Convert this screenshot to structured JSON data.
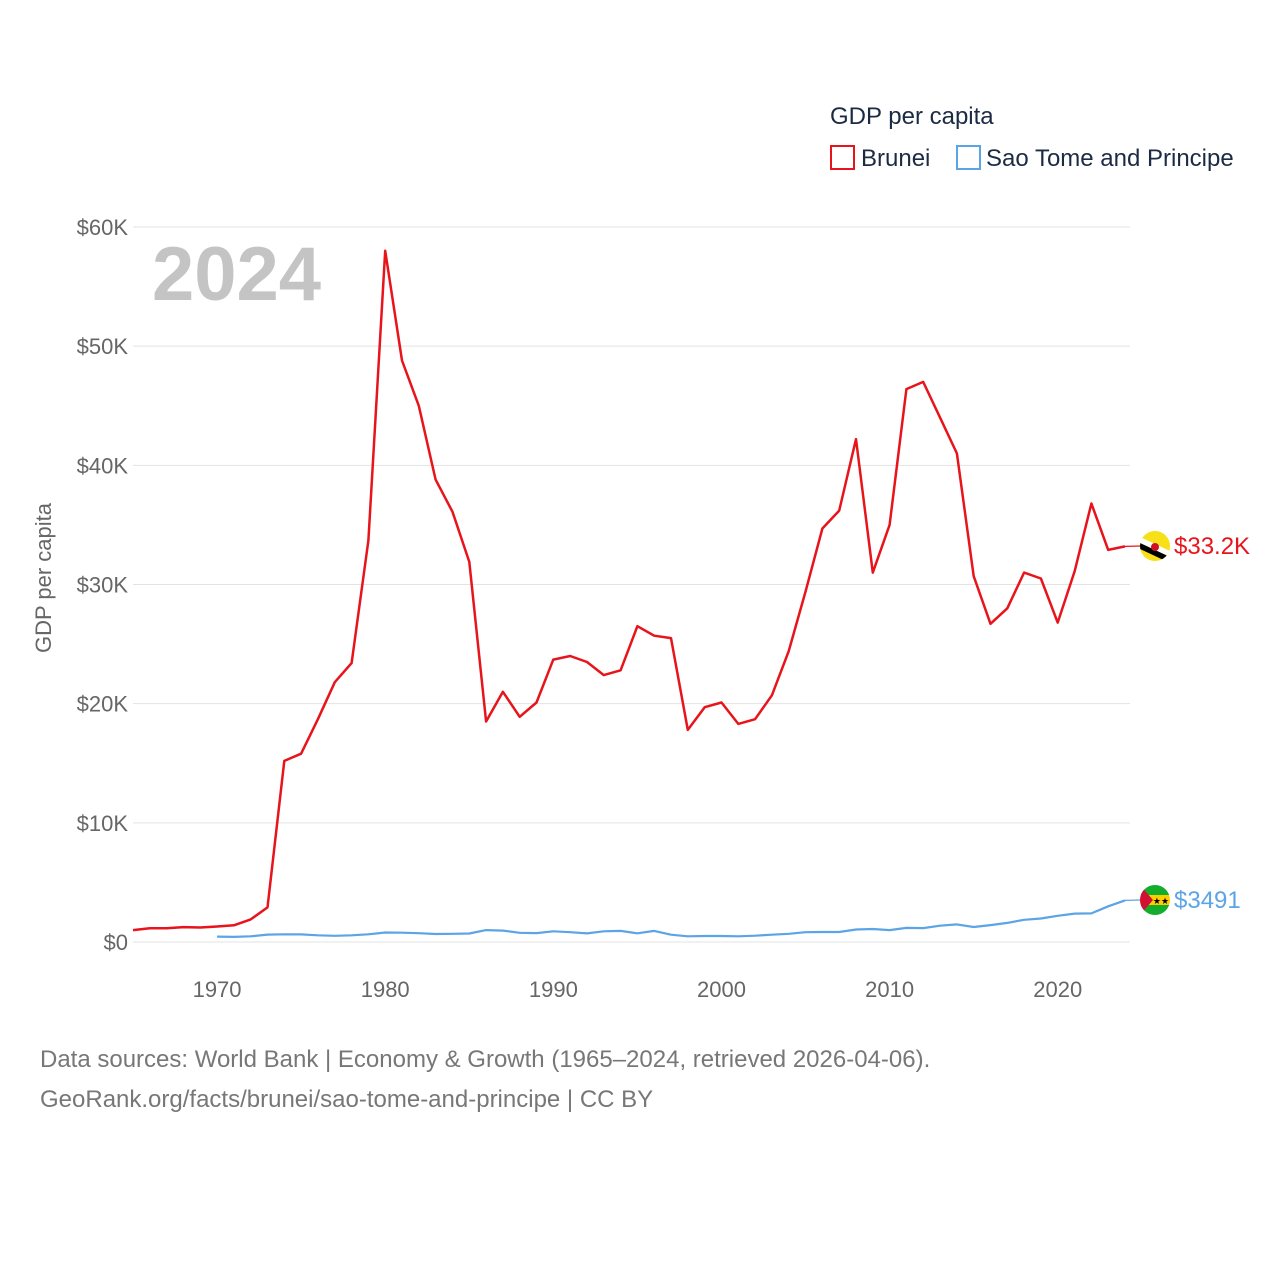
{
  "chart_data": {
    "type": "line",
    "ylabel": "GDP per capita",
    "xlabel": "",
    "legend_title": "GDP per capita",
    "current_year": "2024",
    "xlim": [
      1965,
      2024
    ],
    "ylim": [
      0,
      60000
    ],
    "y_ticks": [
      {
        "value": 0,
        "label": "$0"
      },
      {
        "value": 10000,
        "label": "$10K"
      },
      {
        "value": 20000,
        "label": "$20K"
      },
      {
        "value": 30000,
        "label": "$30K"
      },
      {
        "value": 40000,
        "label": "$40K"
      },
      {
        "value": 50000,
        "label": "$50K"
      },
      {
        "value": 60000,
        "label": "$60K"
      }
    ],
    "x_ticks": [
      {
        "value": 1970,
        "label": "1970"
      },
      {
        "value": 1980,
        "label": "1980"
      },
      {
        "value": 1990,
        "label": "1990"
      },
      {
        "value": 2000,
        "label": "2000"
      },
      {
        "value": 2010,
        "label": "2010"
      },
      {
        "value": 2020,
        "label": "2020"
      }
    ],
    "grid": true,
    "legend_position": "top-right",
    "series": [
      {
        "name": "Brunei",
        "color": "#e8141b",
        "end_label": "$33.2K",
        "flag_icon": "brunei-flag-icon",
        "points": [
          [
            1965,
            1000
          ],
          [
            1966,
            1150
          ],
          [
            1967,
            1150
          ],
          [
            1968,
            1250
          ],
          [
            1969,
            1220
          ],
          [
            1970,
            1300
          ],
          [
            1971,
            1400
          ],
          [
            1972,
            1900
          ],
          [
            1973,
            2900
          ],
          [
            1974,
            15200
          ],
          [
            1975,
            15800
          ],
          [
            1976,
            18700
          ],
          [
            1977,
            21800
          ],
          [
            1978,
            23400
          ],
          [
            1979,
            33700
          ],
          [
            1980,
            58000
          ],
          [
            1981,
            48800
          ],
          [
            1982,
            45000
          ],
          [
            1983,
            38800
          ],
          [
            1984,
            36100
          ],
          [
            1985,
            31900
          ],
          [
            1986,
            18500
          ],
          [
            1987,
            21000
          ],
          [
            1988,
            18900
          ],
          [
            1989,
            20100
          ],
          [
            1990,
            23700
          ],
          [
            1991,
            24000
          ],
          [
            1992,
            23500
          ],
          [
            1993,
            22400
          ],
          [
            1994,
            22800
          ],
          [
            1995,
            26500
          ],
          [
            1996,
            25700
          ],
          [
            1997,
            25500
          ],
          [
            1998,
            17800
          ],
          [
            1999,
            19700
          ],
          [
            2000,
            20100
          ],
          [
            2001,
            18300
          ],
          [
            2002,
            18700
          ],
          [
            2003,
            20700
          ],
          [
            2004,
            24400
          ],
          [
            2005,
            29400
          ],
          [
            2006,
            34700
          ],
          [
            2007,
            36200
          ],
          [
            2008,
            42200
          ],
          [
            2009,
            31000
          ],
          [
            2010,
            35000
          ],
          [
            2011,
            46400
          ],
          [
            2012,
            47000
          ],
          [
            2013,
            44000
          ],
          [
            2014,
            41000
          ],
          [
            2015,
            30700
          ],
          [
            2016,
            26700
          ],
          [
            2017,
            28000
          ],
          [
            2018,
            31000
          ],
          [
            2019,
            30500
          ],
          [
            2020,
            26800
          ],
          [
            2021,
            31100
          ],
          [
            2022,
            36800
          ],
          [
            2023,
            32900
          ],
          [
            2024,
            33200
          ]
        ]
      },
      {
        "name": "Sao Tome and Principe",
        "color": "#5ba4e5",
        "end_label": "$3491",
        "flag_icon": "sao-tome-flag-icon",
        "points": [
          [
            1970,
            450
          ],
          [
            1971,
            430
          ],
          [
            1972,
            480
          ],
          [
            1973,
            620
          ],
          [
            1974,
            650
          ],
          [
            1975,
            640
          ],
          [
            1976,
            560
          ],
          [
            1977,
            520
          ],
          [
            1978,
            560
          ],
          [
            1979,
            650
          ],
          [
            1980,
            800
          ],
          [
            1981,
            780
          ],
          [
            1982,
            740
          ],
          [
            1983,
            670
          ],
          [
            1984,
            690
          ],
          [
            1985,
            710
          ],
          [
            1986,
            1000
          ],
          [
            1987,
            960
          ],
          [
            1988,
            770
          ],
          [
            1989,
            750
          ],
          [
            1990,
            900
          ],
          [
            1991,
            820
          ],
          [
            1992,
            720
          ],
          [
            1993,
            900
          ],
          [
            1994,
            930
          ],
          [
            1995,
            730
          ],
          [
            1996,
            930
          ],
          [
            1997,
            610
          ],
          [
            1998,
            480
          ],
          [
            1999,
            500
          ],
          [
            2000,
            500
          ],
          [
            2001,
            480
          ],
          [
            2002,
            530
          ],
          [
            2003,
            610
          ],
          [
            2004,
            690
          ],
          [
            2005,
            820
          ],
          [
            2006,
            840
          ],
          [
            2007,
            840
          ],
          [
            2008,
            1050
          ],
          [
            2009,
            1090
          ],
          [
            2010,
            1000
          ],
          [
            2011,
            1180
          ],
          [
            2012,
            1170
          ],
          [
            2013,
            1370
          ],
          [
            2014,
            1480
          ],
          [
            2015,
            1260
          ],
          [
            2016,
            1420
          ],
          [
            2017,
            1600
          ],
          [
            2018,
            1860
          ],
          [
            2019,
            1970
          ],
          [
            2020,
            2200
          ],
          [
            2021,
            2380
          ],
          [
            2022,
            2400
          ],
          [
            2023,
            3000
          ],
          [
            2024,
            3491
          ]
        ]
      }
    ]
  },
  "footer": {
    "source_line": "Data sources: World Bank | Economy & Growth (1965–2024, retrieved 2026-04-06).",
    "credit_line": "GeoRank.org/facts/brunei/sao-tome-and-principe | CC BY"
  }
}
